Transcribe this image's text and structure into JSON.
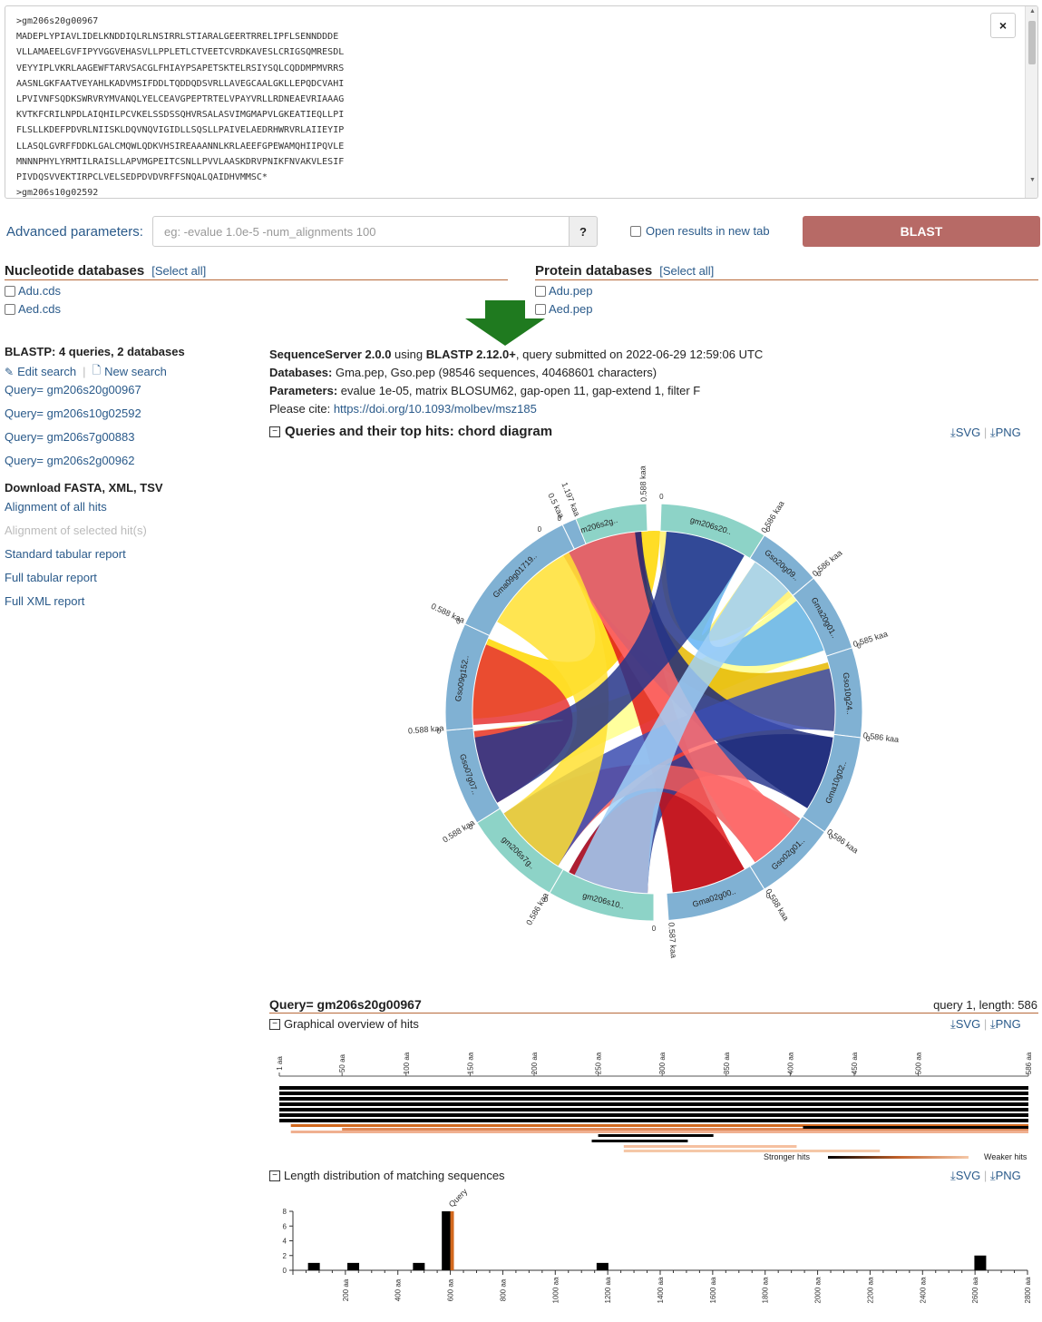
{
  "sequence": {
    "text": ">gm206s20g00967\nMADEPLYPIAVLIDELKNDDIQLRLNSIRRLSTIARALGEERTRRELIPFLSENNDDDE\nVLLAMAEELGVFIPYVGGVEHASVLLPPLETLCTVEETCVRDKAVESLCRIGSQMRESDL\nVEYYIPLVKRLAAGEWFTARVSACGLFHIAYPSAPETSKTELRSIYSQLCQDDMPMVRRS\nAASNLGKFAATVEYAHLKADVMSIFDDLTQDDQDSVRLLAVEGCAALGKLLEPQDCVAHI\nLPVIVNFSQDKSWRVRYMVANQLYELCEAVGPEPTRTELVPAYVRLLRDNEAEVRIAAAG\nKVTKFCRILNPDLAIQHILPCVKELSSDSSQHVRSALASVIMGMAPVLGKEATIEQLLPI\nFLSLLKDEFPDVRLNIISKLDQVNQVIGIDLLSQSLLPAIVELAEDRHWRVRLAIIEYIP\nLLASQLGVRFFDDKLGALCMQWLQDKVHSIREAAANNLKRLAEEFGPEWAMQHIIPQVLE\nMNNNPHYLYRMTILRAISLLAPVMGPEITCSNLLPVVLAASKDRVPNIKFNVAKVLESIF\nPIVDQSVVEKTIRPCLVELSEDPDVDVRFFSNQALQAIDHVMMSC*\n>gm206s10g02592",
    "close_label": "×"
  },
  "advanced": {
    "label": "Advanced parameters:",
    "placeholder": "eg: -evalue 1.0e-5 -num_alignments 100",
    "help_label": "?",
    "newtab_label": "Open results in new tab",
    "blast_label": "BLAST"
  },
  "nucleotide": {
    "title": "Nucleotide databases",
    "select_all": "[Select all]",
    "items": [
      "Adu.cds",
      "Aed.cds"
    ]
  },
  "protein": {
    "title": "Protein databases",
    "select_all": "[Select all]",
    "items": [
      "Adu.pep",
      "Aed.pep"
    ]
  },
  "sidebar": {
    "heading": "BLASTP: 4 queries, 2 databases",
    "edit": "Edit search",
    "sep": "|",
    "new": "New search",
    "queries": [
      "Query= gm206s20g00967",
      "Query= gm206s10g02592",
      "Query= gm206s7g00883",
      "Query= gm206s2g00962"
    ],
    "download_heading": "Download FASTA, XML, TSV",
    "downloads": [
      "Alignment of all hits",
      "Alignment of selected hit(s)",
      "Standard tabular report",
      "Full tabular report",
      "Full XML report"
    ]
  },
  "meta": {
    "server_bold": "SequenceServer 2.0.0",
    "using": " using ",
    "blast_bold": "BLASTP 2.12.0+",
    "submitted": ", query submitted on 2022-06-29 12:59:06 UTC",
    "db_label": "Databases:",
    "db_value": " Gma.pep, Gso.pep (98546 sequences, 40468601 characters)",
    "param_label": "Parameters:",
    "param_value": " evalue 1e-05, matrix BLOSUM62, gap-open 11, gap-extend 1, filter F",
    "cite_label": "Please cite: ",
    "cite_link": "https://doi.org/10.1093/molbev/msz185"
  },
  "chord": {
    "title": "Queries and their top hits: chord diagram",
    "svg": "SVG",
    "png": "PNG",
    "sep": "|",
    "segments": [
      {
        "label": "gm206s2g..",
        "size": "0.588 kaa",
        "color": "#8dd3c7"
      },
      {
        "label": "gm206s20..",
        "size": "0.586 kaa",
        "color": "#8dd3c7"
      },
      {
        "label": "Gso20g09..",
        "size": "0.586 kaa",
        "color": "#80b1d3"
      },
      {
        "label": "Gma20g01..",
        "size": "0.585 kaa",
        "color": "#80b1d3"
      },
      {
        "label": "Gso10g24..",
        "size": "0.586 kaa",
        "color": "#80b1d3"
      },
      {
        "label": "Gma10g02..",
        "size": "0.586 kaa",
        "color": "#80b1d3"
      },
      {
        "label": "Gso02g01..",
        "size": "0.588 kaa",
        "color": "#80b1d3"
      },
      {
        "label": "Gma02g00..",
        "size": "0.587 kaa",
        "color": "#80b1d3"
      },
      {
        "label": "gm206s10..",
        "size": "0.586 kaa",
        "color": "#8dd3c7"
      },
      {
        "label": "gm206s7g..",
        "size": "0.588 kaa",
        "color": "#8dd3c7"
      },
      {
        "label": "Gso07g07..",
        "size": "0.588 kaa",
        "color": "#80b1d3"
      },
      {
        "label": "Gso09g152..",
        "size": "0.588 kaa",
        "color": "#80b1d3"
      },
      {
        "label": "Gma09g01719..",
        "size": "0.5 kaa",
        "color": "#80b1d3"
      },
      {
        "label": "",
        "size": "1.197 kaa",
        "color": "#80b1d3"
      }
    ],
    "zero": "0"
  },
  "query1": {
    "title": "Query= gm206s20g00967",
    "info": "query 1, length: 586",
    "overview_title": "Graphical overview of hits",
    "length_title": "Length distribution of matching sequences",
    "svg": "SVG",
    "png": "PNG",
    "sep": "|",
    "stronger": "Stronger hits",
    "weaker": "Weaker hits",
    "query_tag": "Query",
    "overview_ticks": [
      "1 aa",
      "50 aa",
      "100 aa",
      "150 aa",
      "200 aa",
      "250 aa",
      "300 aa",
      "350 aa",
      "400 aa",
      "450 aa",
      "500 aa",
      "586 aa"
    ]
  },
  "chart_data": {
    "type": "bar",
    "title": "Length distribution of matching sequences",
    "x": [
      80,
      230,
      480,
      590,
      1180,
      2620
    ],
    "values": [
      1,
      1,
      1,
      8,
      1,
      2
    ],
    "query_length": 586,
    "xlim": [
      0,
      2800
    ],
    "ylim": [
      0,
      8
    ],
    "xticks": [
      "200 aa",
      "400 aa",
      "600 aa",
      "800 aa",
      "1000 aa",
      "1200 aa",
      "1400 aa",
      "1600 aa",
      "1800 aa",
      "2000 aa",
      "2200 aa",
      "2400 aa",
      "2600 aa",
      "2800 aa"
    ],
    "yticks": [
      "0",
      "2",
      "4",
      "6",
      "8"
    ]
  },
  "colors": {
    "link": "#2a5a8a",
    "blast": "#b76a66",
    "accent_line": "#b86a3b",
    "query_seg": "#8dd3c7",
    "hit_seg": "#80b1d3"
  }
}
